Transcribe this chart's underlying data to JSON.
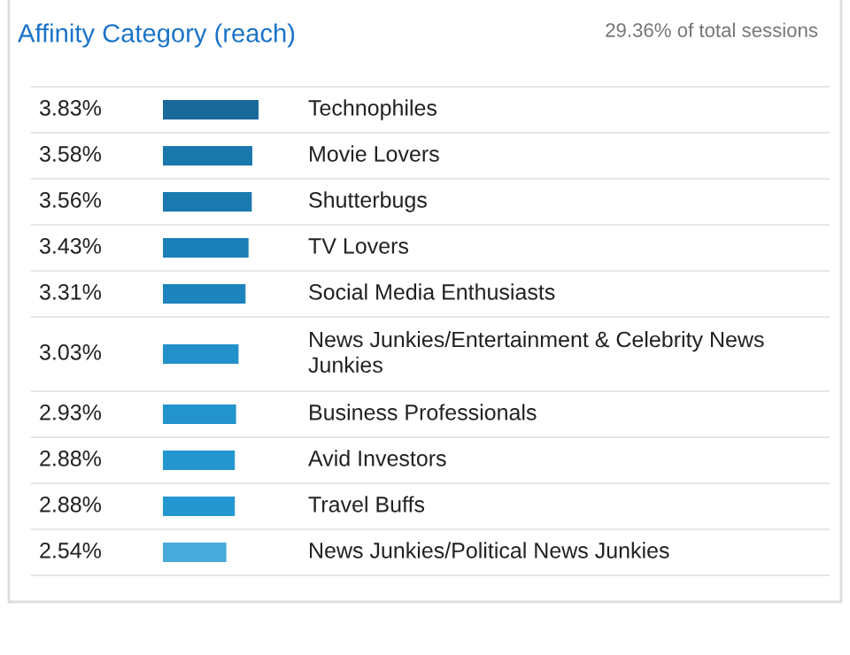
{
  "chart_data": {
    "type": "bar",
    "orientation": "horizontal",
    "title": "Affinity Category (reach)",
    "subtitle": "29.36% of total sessions",
    "categories": [
      "Technophiles",
      "Movie Lovers",
      "Shutterbugs",
      "TV Lovers",
      "Social Media Enthusiasts",
      "News Junkies/Entertainment & Celebrity News Junkies",
      "Business Professionals",
      "Avid Investors",
      "Travel Buffs",
      "News Junkies/Political News Junkies"
    ],
    "values": [
      3.83,
      3.58,
      3.56,
      3.43,
      3.31,
      3.03,
      2.93,
      2.88,
      2.88,
      2.54
    ],
    "value_labels": [
      "3.83%",
      "3.58%",
      "3.56%",
      "3.43%",
      "3.31%",
      "3.03%",
      "2.93%",
      "2.88%",
      "2.88%",
      "2.54%"
    ],
    "colors": [
      "#19699b",
      "#1b78ad",
      "#1b7ab0",
      "#1c80b8",
      "#1e84bd",
      "#2290cb",
      "#2393cd",
      "#2496d0",
      "#2496d0",
      "#46aadb"
    ]
  }
}
